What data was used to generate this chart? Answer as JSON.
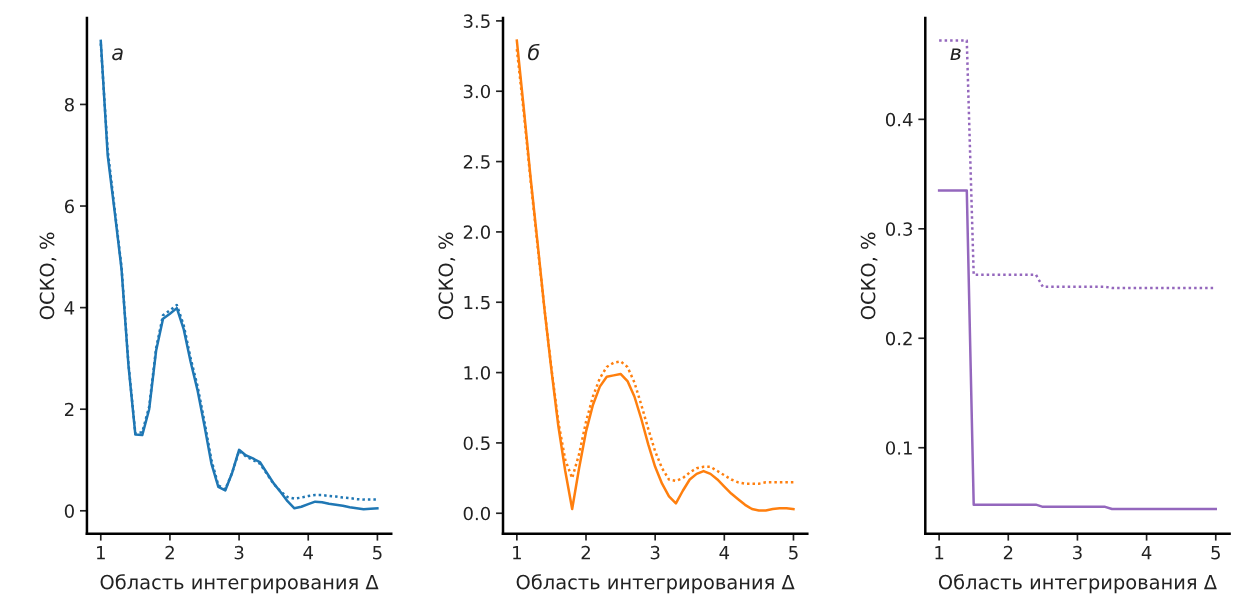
{
  "chart_data": [
    {
      "type": "line",
      "xlabel": "Область интегрирования Δ",
      "ylabel": "ОСКО, %",
      "annotations": [
        "а"
      ],
      "xlim": [
        0.8,
        5.2
      ],
      "xticks": [
        1,
        2,
        3,
        4,
        5
      ],
      "ylim": [
        -0.45,
        9.7
      ],
      "yticks": [
        0,
        2,
        4,
        6,
        8
      ],
      "grid": false,
      "marker": "none",
      "x": [
        1.0,
        1.1,
        1.2,
        1.3,
        1.4,
        1.5,
        1.6,
        1.7,
        1.8,
        1.9,
        2.0,
        2.1,
        2.2,
        2.3,
        2.4,
        2.5,
        2.6,
        2.7,
        2.8,
        2.9,
        3.0,
        3.1,
        3.2,
        3.3,
        3.4,
        3.5,
        3.6,
        3.7,
        3.8,
        3.9,
        4.0,
        4.1,
        4.2,
        4.3,
        4.4,
        4.5,
        4.6,
        4.7,
        4.8,
        4.9,
        5.0
      ],
      "series": [
        {
          "color": "#1f77b4",
          "line_style": "solid",
          "values": [
            9.25,
            7.0,
            5.9,
            4.76,
            2.87,
            1.5,
            1.49,
            2.0,
            3.15,
            3.78,
            3.88,
            3.99,
            3.57,
            2.93,
            2.37,
            1.67,
            0.93,
            0.47,
            0.4,
            0.75,
            1.2,
            1.09,
            1.03,
            0.96,
            0.75,
            0.54,
            0.37,
            0.19,
            0.05,
            0.08,
            0.13,
            0.18,
            0.17,
            0.14,
            0.12,
            0.1,
            0.07,
            0.05,
            0.03,
            0.04,
            0.05
          ]
        },
        {
          "color": "#1f77b4",
          "line_style": "dotted",
          "values": [
            9.2,
            7.1,
            5.95,
            4.8,
            2.9,
            1.52,
            1.55,
            2.05,
            3.2,
            3.85,
            3.95,
            4.05,
            3.65,
            3.0,
            2.45,
            1.75,
            1.0,
            0.5,
            0.42,
            0.75,
            1.18,
            1.07,
            1.0,
            0.93,
            0.73,
            0.53,
            0.38,
            0.27,
            0.24,
            0.26,
            0.29,
            0.31,
            0.31,
            0.29,
            0.28,
            0.26,
            0.25,
            0.23,
            0.22,
            0.22,
            0.22
          ]
        }
      ]
    },
    {
      "type": "line",
      "xlabel": "Область интегрирования Δ",
      "ylabel": "ОСКО, %",
      "annotations": [
        "б"
      ],
      "xlim": [
        0.8,
        5.2
      ],
      "xticks": [
        1,
        2,
        3,
        4,
        5
      ],
      "ylim": [
        -0.145,
        3.52
      ],
      "yticks": [
        {
          "value": 0,
          "label": "0.0"
        },
        0.5,
        {
          "value": 1,
          "label": "1.0"
        },
        1.5,
        {
          "value": 2,
          "label": "2.0"
        },
        2.5,
        {
          "value": 3,
          "label": "3.0"
        },
        3.5
      ],
      "grid": false,
      "marker": "none",
      "x": [
        1.0,
        1.1,
        1.2,
        1.3,
        1.4,
        1.5,
        1.6,
        1.7,
        1.8,
        1.9,
        2.0,
        2.1,
        2.2,
        2.3,
        2.4,
        2.5,
        2.6,
        2.7,
        2.8,
        2.9,
        3.0,
        3.1,
        3.2,
        3.3,
        3.4,
        3.5,
        3.6,
        3.7,
        3.8,
        3.9,
        4.0,
        4.1,
        4.2,
        4.3,
        4.4,
        4.5,
        4.6,
        4.7,
        4.8,
        4.9,
        5.0
      ],
      "series": [
        {
          "color": "#ff7f0e",
          "line_style": "solid",
          "values": [
            3.36,
            2.88,
            2.38,
            1.92,
            1.45,
            1.02,
            0.62,
            0.3,
            0.03,
            0.32,
            0.58,
            0.77,
            0.9,
            0.97,
            0.98,
            0.99,
            0.94,
            0.83,
            0.67,
            0.49,
            0.33,
            0.21,
            0.12,
            0.07,
            0.16,
            0.24,
            0.28,
            0.3,
            0.28,
            0.24,
            0.19,
            0.14,
            0.1,
            0.06,
            0.03,
            0.02,
            0.02,
            0.03,
            0.035,
            0.035,
            0.03
          ]
        },
        {
          "color": "#ff7f0e",
          "line_style": "dotted",
          "values": [
            3.3,
            2.85,
            2.36,
            1.9,
            1.45,
            1.03,
            0.65,
            0.38,
            0.25,
            0.42,
            0.65,
            0.83,
            0.96,
            1.04,
            1.07,
            1.08,
            1.04,
            0.93,
            0.77,
            0.6,
            0.44,
            0.32,
            0.24,
            0.23,
            0.25,
            0.29,
            0.32,
            0.33,
            0.33,
            0.3,
            0.27,
            0.24,
            0.22,
            0.21,
            0.21,
            0.21,
            0.22,
            0.22,
            0.22,
            0.22,
            0.22
          ]
        }
      ]
    },
    {
      "type": "line",
      "xlabel": "Область интегрирования Δ",
      "ylabel": "ОСКО, %",
      "annotations": [
        "в"
      ],
      "xlim": [
        0.8,
        5.2
      ],
      "xticks": [
        1,
        2,
        3,
        4,
        5
      ],
      "ylim": [
        0.0215,
        0.4925
      ],
      "yticks": [
        0.1,
        0.2,
        0.3,
        0.4
      ],
      "grid": false,
      "marker": "none",
      "x": [
        1.0,
        1.4,
        1.5,
        2.4,
        2.5,
        3.4,
        3.5,
        5.0
      ],
      "series": [
        {
          "color": "#9467bd",
          "line_style": "solid",
          "values": [
            0.335,
            0.335,
            0.048,
            0.048,
            0.046,
            0.046,
            0.044,
            0.044
          ]
        },
        {
          "color": "#9467bd",
          "line_style": "dotted",
          "values": [
            0.472,
            0.472,
            0.258,
            0.258,
            0.247,
            0.247,
            0.246,
            0.246
          ]
        }
      ]
    }
  ]
}
